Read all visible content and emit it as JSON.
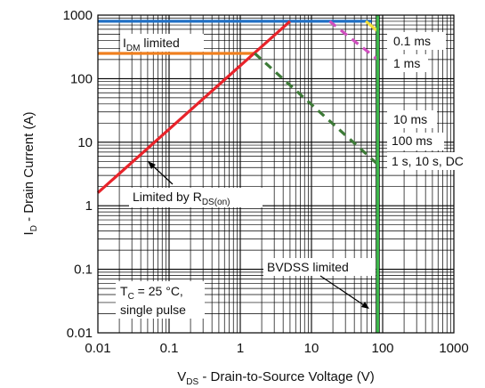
{
  "chart_data": {
    "type": "line",
    "x_scale": "log",
    "y_scale": "log",
    "xlim": [
      0.01,
      1000
    ],
    "ylim": [
      0.01,
      1000
    ],
    "grid": true,
    "xlabel": {
      "main": "V",
      "sub": "DS",
      "rest": " - Drain-to-Source Voltage (V)"
    },
    "ylabel": {
      "main": "I",
      "sub": "D",
      "rest": " - Drain Current (A)"
    },
    "x_ticks": [
      {
        "v": 0.01,
        "label": "0.01"
      },
      {
        "v": 0.1,
        "label": "0.1"
      },
      {
        "v": 1,
        "label": "1"
      },
      {
        "v": 10,
        "label": "10"
      },
      {
        "v": 100,
        "label": "100"
      },
      {
        "v": 1000,
        "label": "1000"
      }
    ],
    "y_ticks": [
      {
        "v": 1000,
        "label": "1000"
      },
      {
        "v": 100,
        "label": "100"
      },
      {
        "v": 10,
        "label": "10"
      },
      {
        "v": 1,
        "label": "1"
      },
      {
        "v": 0.1,
        "label": "0.1"
      },
      {
        "v": 0.01,
        "label": "0.01"
      }
    ],
    "series": [
      {
        "color": "#1f6fc4",
        "dash": false,
        "points": [
          [
            0.01,
            800
          ],
          [
            70,
            800
          ]
        ]
      },
      {
        "color": "#f07f1e",
        "dash": false,
        "points": [
          [
            0.01,
            250
          ],
          [
            1.6,
            250
          ]
        ]
      },
      {
        "color": "#e8232a",
        "dash": false,
        "points": [
          [
            0.01,
            1.6
          ],
          [
            5,
            800
          ]
        ]
      },
      {
        "color": "#f5e03a",
        "dash": false,
        "points": [
          [
            58,
            800
          ],
          [
            85,
            560
          ]
        ]
      },
      {
        "color": "#d04fbf",
        "dash": true,
        "points": [
          [
            18,
            800
          ],
          [
            85,
            200
          ]
        ]
      },
      {
        "color": "#3d7a37",
        "dash": true,
        "points": [
          [
            1.6,
            250
          ],
          [
            85,
            4.5
          ]
        ]
      },
      {
        "color": "#3cb64a",
        "dash": false,
        "points": [
          [
            85,
            0.01
          ],
          [
            85,
            1000
          ]
        ]
      }
    ],
    "annotations": {
      "idm": {
        "main": "I",
        "sub": "DM",
        "rest": " limited"
      },
      "rds": {
        "main": "Limited by R",
        "sub": "DS(on)",
        "rest": ""
      },
      "bvdss": "BVDSS limited",
      "tc": {
        "main": "T",
        "sub": "C",
        "rest": " = 25 °C,"
      },
      "tc2": "single pulse",
      "r01": "0.1 ms",
      "r1": "1 ms",
      "r10": "10 ms",
      "r100": "100 ms",
      "rdc": "1 s, 10 s, DC"
    }
  }
}
